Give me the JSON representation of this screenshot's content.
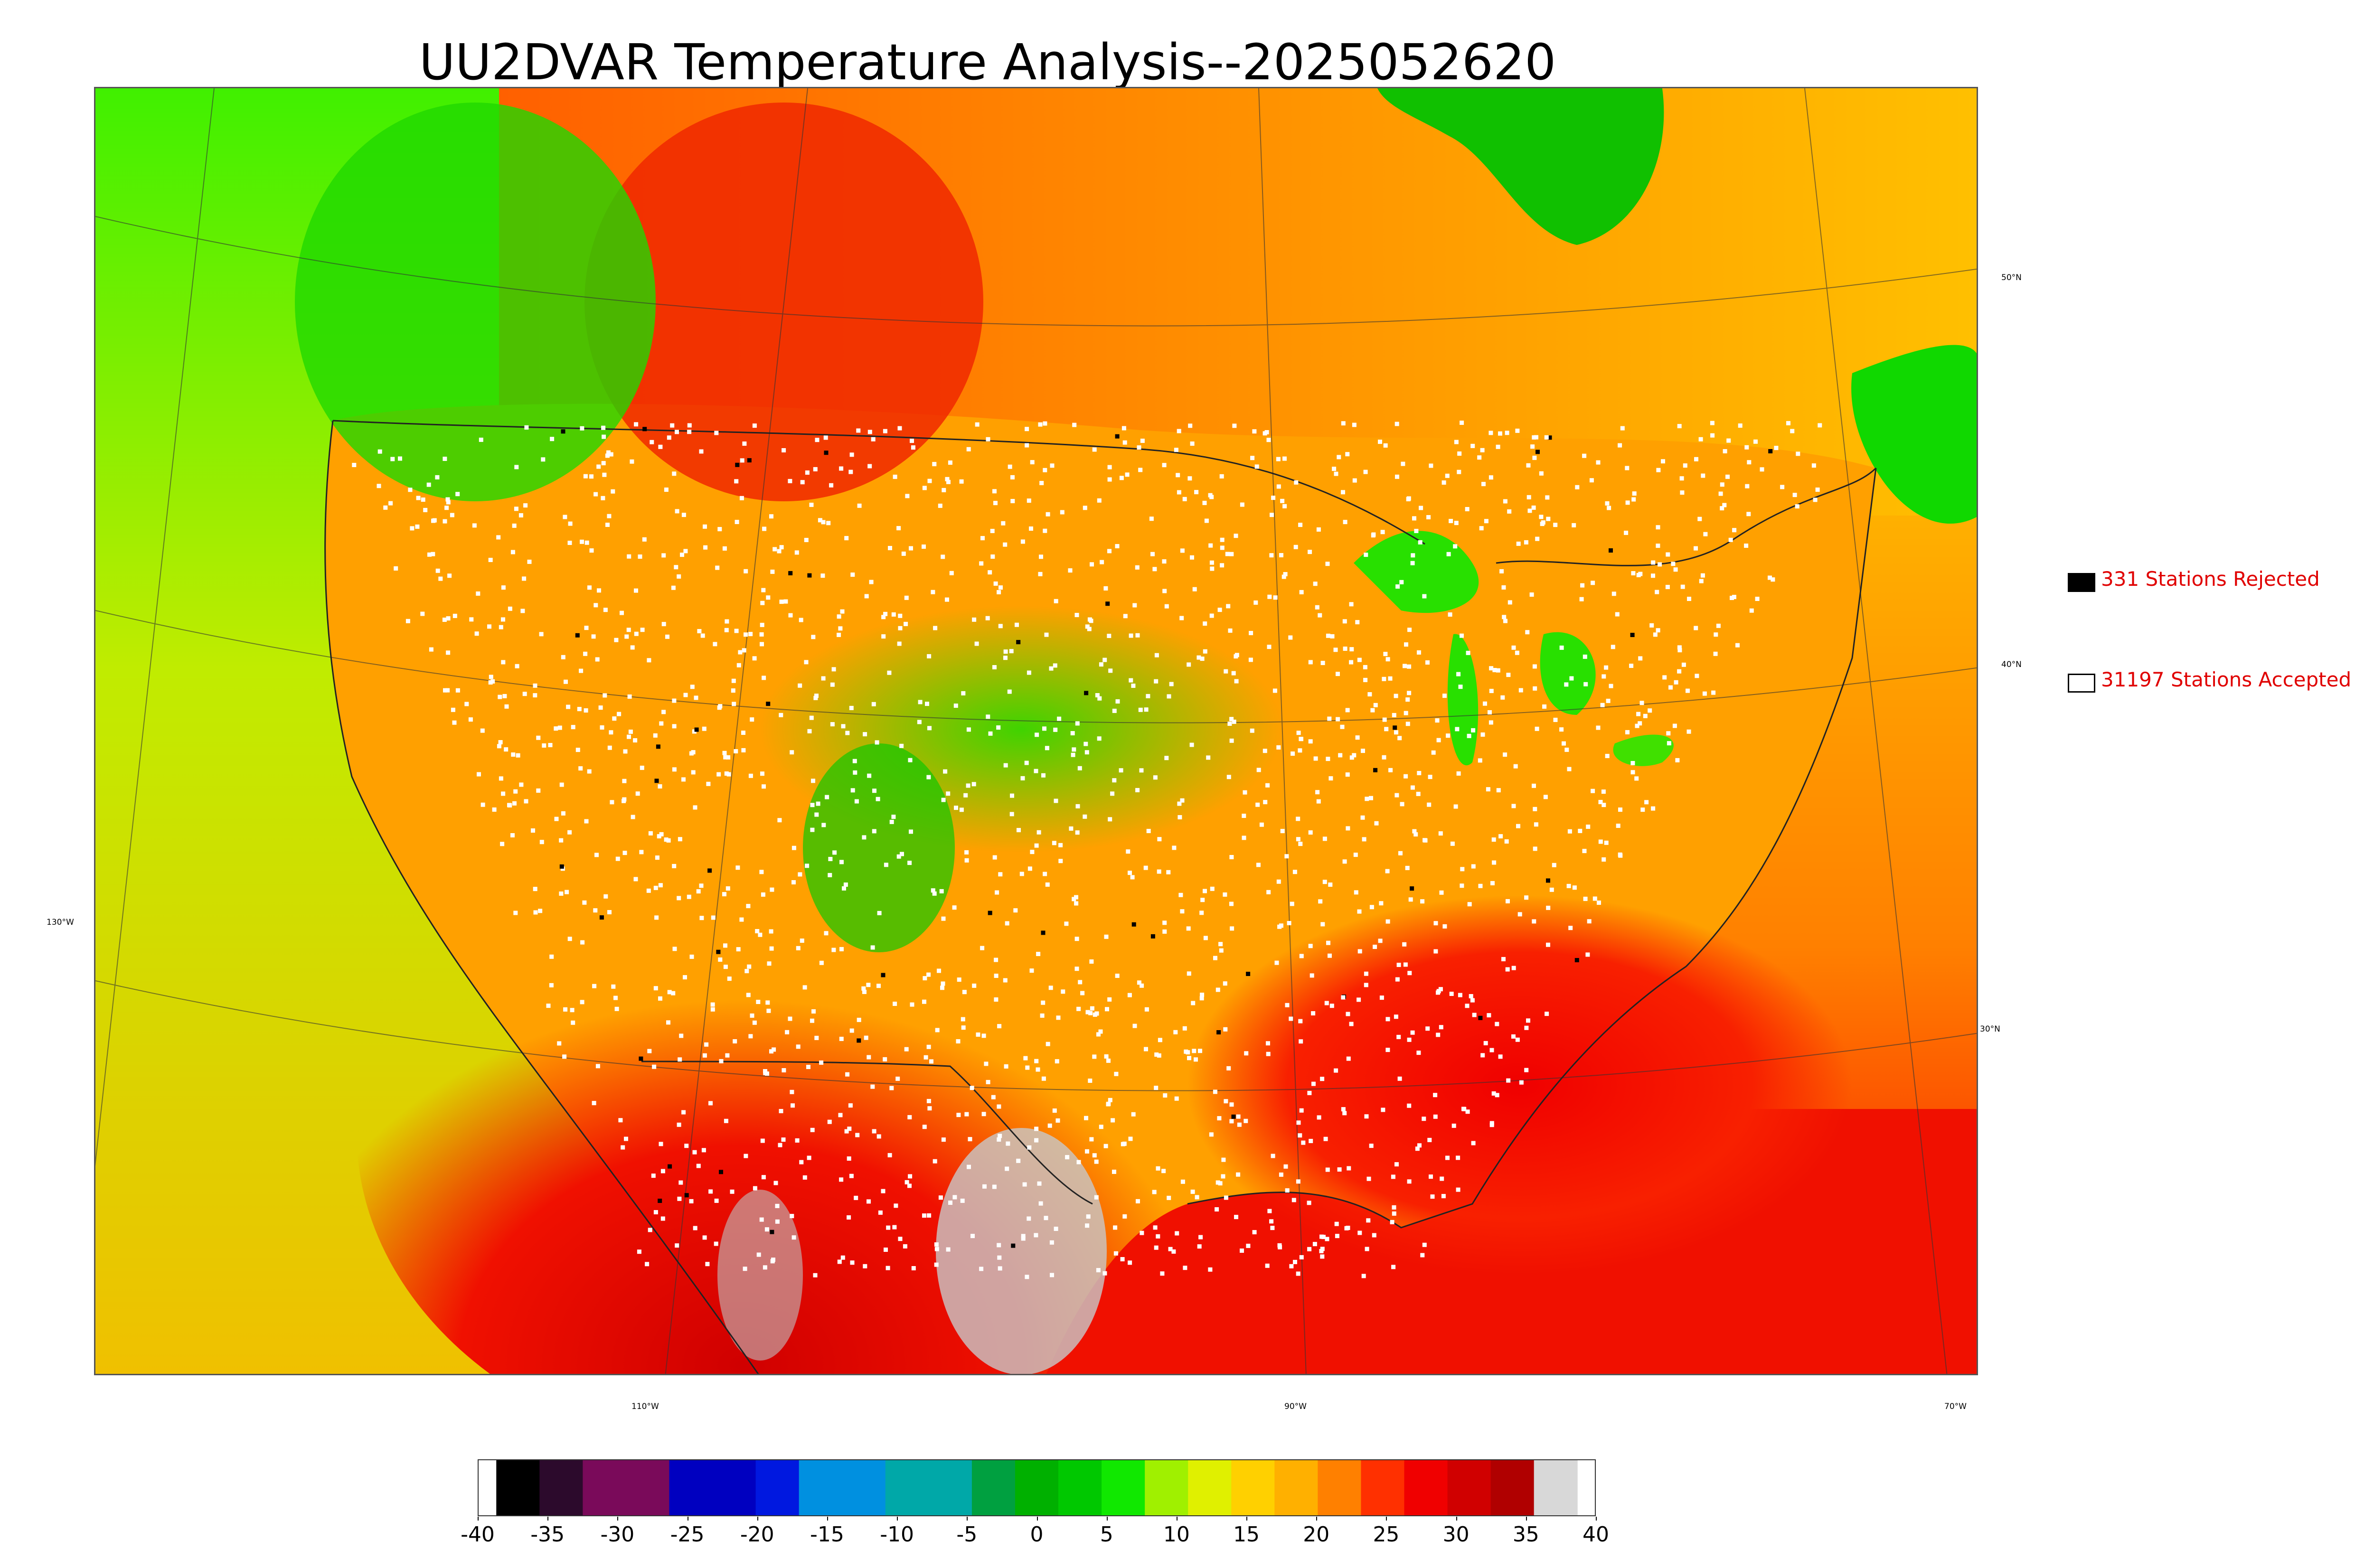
{
  "title": "UU2DVAR Temperature Analysis--2025052620",
  "legend": {
    "rejected_label": "331 Stations Rejected",
    "accepted_label": "31197 Stations Accepted",
    "rejected_color": "#000000",
    "accepted_color": "#ffffff",
    "text_color": "#e00000"
  },
  "map": {
    "lat_labels": [
      "50°N",
      "40°N",
      "30°N"
    ],
    "lon_labels": [
      "130°W",
      "110°W",
      "90°W",
      "70°W"
    ],
    "ocean_color": "#c8e800",
    "hot_color": "#e00000",
    "cool_color": "#2ee400"
  },
  "colorbar": {
    "tick_labels": [
      "-40",
      "-35",
      "-30",
      "-25",
      "-20",
      "-15",
      "-10",
      "-5",
      "0",
      "5",
      "10",
      "15",
      "20",
      "25",
      "30",
      "35",
      "40"
    ],
    "colors": [
      "#000000",
      "#2c0a2c",
      "#7a0a5a",
      "#7a0a5a",
      "#0000c0",
      "#0000c0",
      "#0018e0",
      "#0090e0",
      "#0090e0",
      "#00a8a8",
      "#00a8a8",
      "#00a040",
      "#00b000",
      "#00c800",
      "#10e800",
      "#a0f000",
      "#e0f000",
      "#ffd000",
      "#ffb000",
      "#ff8000",
      "#ff3000",
      "#f00000",
      "#d00000",
      "#b00000",
      "#d8d8d8"
    ]
  }
}
